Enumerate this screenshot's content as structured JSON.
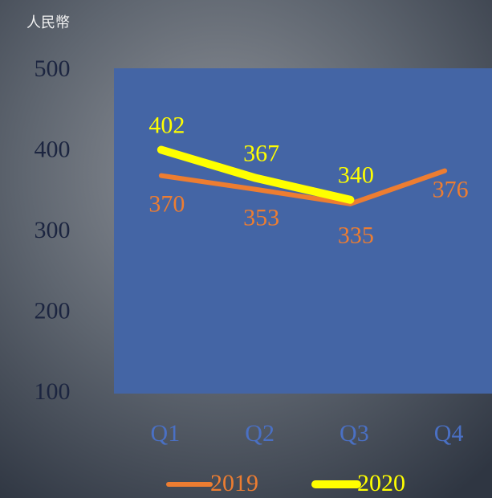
{
  "chart_data": {
    "type": "line",
    "y_label": "人民幣",
    "categories": [
      "Q1",
      "Q2",
      "Q3",
      "Q4"
    ],
    "series": [
      {
        "name": "2019",
        "color": "#ed7d31",
        "values": [
          370,
          353,
          335,
          376
        ]
      },
      {
        "name": "2020",
        "color": "#ffff00",
        "values": [
          402,
          367,
          340,
          null
        ]
      }
    ],
    "ylim": [
      100,
      500
    ],
    "yticks": [
      100,
      200,
      300,
      400,
      500
    ],
    "plot_background": "#4465a5"
  }
}
